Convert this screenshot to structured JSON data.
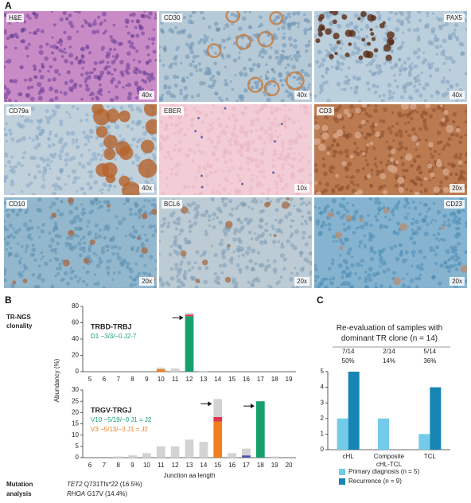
{
  "panel_a": {
    "label": "A",
    "tiles": [
      {
        "stain": "H&E",
        "magnification": "40x"
      },
      {
        "stain": "CD30",
        "magnification": "40x"
      },
      {
        "stain": "PAX5",
        "magnification": "40x"
      },
      {
        "stain": "CD79a",
        "magnification": "40x"
      },
      {
        "stain": "EBER",
        "magnification": "10x"
      },
      {
        "stain": "CD3",
        "magnification": "20x"
      },
      {
        "stain": "CD10",
        "magnification": "20x"
      },
      {
        "stain": "BCL6",
        "magnification": "20x"
      },
      {
        "stain": "CD23",
        "magnification": "20x"
      }
    ]
  },
  "panel_b": {
    "label": "B",
    "row_label": [
      "TR-NGS",
      "clonality"
    ],
    "mutation_label": [
      "Mutation",
      "analysis"
    ],
    "mutations": [
      {
        "gene": "TET2",
        "variant": "Q731Tfs*22 (16.5%)"
      },
      {
        "gene": "RHOA",
        "variant": "G17V (14.4%)"
      }
    ]
  },
  "panel_c": {
    "label": "C"
  },
  "chart_data": [
    {
      "type": "bar",
      "stacked": true,
      "title": "TRBD-TRBJ",
      "subtitles": [
        {
          "text": "D1 −3/3/−0 J2-7",
          "color": "#16a06d"
        }
      ],
      "ylabel": "Abundancy (%)",
      "categories": [
        5,
        6,
        7,
        8,
        9,
        10,
        11,
        12,
        13,
        14,
        15,
        16,
        17,
        18,
        19
      ],
      "ylim": [
        0,
        80
      ],
      "yticks": [
        0,
        20,
        40,
        60,
        80
      ],
      "series": [
        {
          "color": "#16a06d",
          "values": [
            0,
            0,
            0,
            0,
            0,
            0,
            0,
            68,
            0,
            0,
            0,
            0,
            0,
            0,
            0
          ]
        },
        {
          "color": "#f07f1e",
          "values": [
            0,
            0,
            0,
            0,
            0,
            3,
            0,
            0,
            0,
            0,
            0,
            0,
            0,
            0,
            0
          ]
        },
        {
          "color": "#e0334a",
          "values": [
            0,
            0,
            0,
            0,
            0,
            0,
            0,
            2,
            0,
            0,
            0,
            0,
            0,
            0,
            0
          ]
        },
        {
          "color": "#d3d3d3",
          "values": [
            0,
            0,
            0,
            0,
            0,
            2,
            4,
            2,
            1,
            0,
            0,
            0,
            0,
            0,
            0
          ]
        }
      ]
    },
    {
      "type": "bar",
      "stacked": true,
      "title": "TRGV-TRGJ",
      "subtitles": [
        {
          "text": "V10 −5/19/−0 J1 = J2",
          "color": "#16a06d"
        },
        {
          "text": "V3 −5/13/−3 J1 = J2",
          "color": "#f07f1e"
        }
      ],
      "xlabel": "Junction aa length",
      "categories": [
        6,
        7,
        8,
        9,
        10,
        11,
        12,
        13,
        14,
        15,
        16,
        17,
        18,
        19,
        20
      ],
      "ylim": [
        0,
        30
      ],
      "yticks": [
        0,
        5,
        10,
        15,
        20,
        25,
        30
      ],
      "series": [
        {
          "color": "#16a06d",
          "values": [
            0,
            0,
            0,
            0,
            0,
            0,
            0,
            0,
            0,
            0,
            0,
            0,
            25,
            0,
            0
          ]
        },
        {
          "color": "#f07f1e",
          "values": [
            0,
            0,
            0,
            0,
            0,
            0,
            0,
            0,
            0,
            16,
            0,
            0,
            0,
            0,
            0
          ]
        },
        {
          "color": "#e0334a",
          "values": [
            0,
            0,
            0,
            0,
            0,
            0,
            0,
            0,
            0,
            2,
            0,
            0,
            0,
            0,
            0
          ]
        },
        {
          "color": "#4a55a8",
          "values": [
            0,
            0,
            0,
            0,
            0,
            0,
            0,
            0,
            0,
            0,
            0,
            1,
            0,
            0,
            0
          ]
        },
        {
          "color": "#d3d3d3",
          "values": [
            0,
            0,
            0.5,
            1,
            2,
            5,
            5,
            8,
            7,
            8,
            2,
            3,
            0,
            0.5,
            0
          ]
        }
      ]
    },
    {
      "type": "bar",
      "stacked": false,
      "title": "Re-evaluation of samples with dominant TR clone (n = 14)",
      "categories": [
        "cHL",
        "Composite\ncHL-TCL",
        "TCL"
      ],
      "group_labels": [
        [
          "7/14",
          "50%"
        ],
        [
          "2/14",
          "14%"
        ],
        [
          "5/14",
          "36%"
        ]
      ],
      "ylim": [
        0,
        5
      ],
      "yticks": [
        0,
        1,
        2,
        3,
        4,
        5
      ],
      "series": [
        {
          "name": "Primary diagnosis (n = 5)",
          "color": "#72cbe8",
          "values": [
            2,
            2,
            1
          ]
        },
        {
          "name": "Recurrence (n = 9)",
          "color": "#1785b3",
          "values": [
            5,
            0,
            4
          ]
        }
      ]
    }
  ]
}
